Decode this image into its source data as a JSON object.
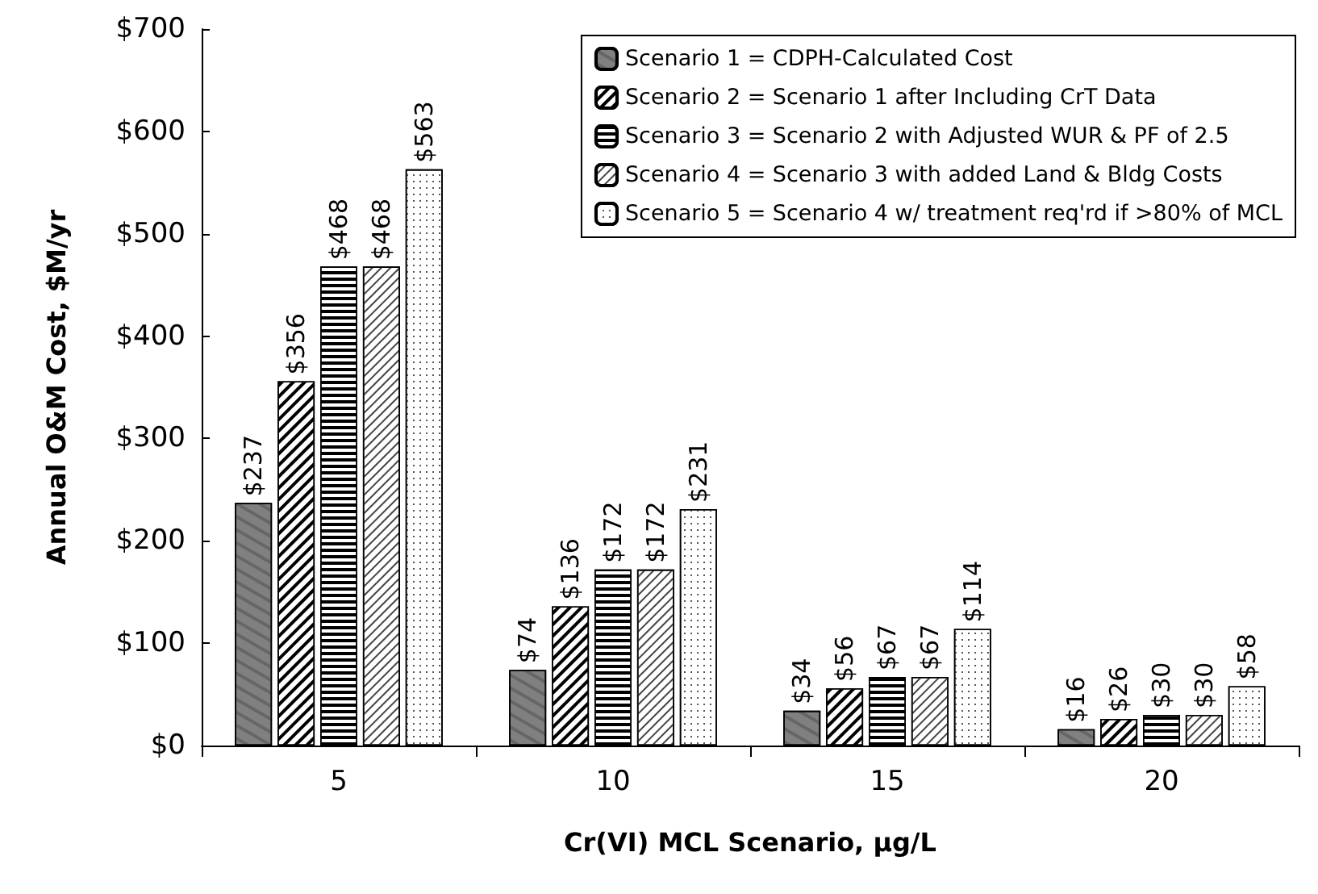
{
  "chart_data": {
    "type": "bar",
    "xlabel": "Cr(VI) MCL Scenario, µg/L",
    "ylabel": "Annual O&M Cost, $M/yr",
    "categories": [
      "5",
      "10",
      "15",
      "20"
    ],
    "series": [
      {
        "name": "Scenario 1 = CDPH-Calculated Cost",
        "color": "#808080",
        "values": [
          237,
          74,
          34,
          16
        ],
        "value_labels": [
          "$237",
          "$74",
          "$34",
          "$16"
        ]
      },
      {
        "name": "Scenario 2 = Scenario 1 after Including CrT Data",
        "color": "#ffffff",
        "values": [
          356,
          136,
          56,
          26
        ],
        "value_labels": [
          "$356",
          "$136",
          "$56",
          "$26"
        ]
      },
      {
        "name": "Scenario 3 = Scenario 2 with Adjusted WUR & PF of 2.5",
        "color": "#ffffff",
        "values": [
          468,
          172,
          67,
          30
        ],
        "value_labels": [
          "$468",
          "$172",
          "$67",
          "$30"
        ]
      },
      {
        "name": "Scenario 4 = Scenario 3 with added Land & Bldg Costs",
        "color": "#ffffff",
        "values": [
          468,
          172,
          67,
          30
        ],
        "value_labels": [
          "$468",
          "$172",
          "$67",
          "$30"
        ]
      },
      {
        "name": "Scenario 5 = Scenario 4 w/ treatment req'rd if >80% of MCL",
        "color": "#ffffff",
        "values": [
          563,
          231,
          114,
          58
        ],
        "value_labels": [
          "$563",
          "$231",
          "$114",
          "$58"
        ]
      }
    ],
    "ylim": [
      0,
      700
    ],
    "yticks": [
      {
        "value": 0,
        "label": "$0"
      },
      {
        "value": 100,
        "label": "$100"
      },
      {
        "value": 200,
        "label": "$200"
      },
      {
        "value": 300,
        "label": "$300"
      },
      {
        "value": 400,
        "label": "$400"
      },
      {
        "value": 500,
        "label": "$500"
      },
      {
        "value": 600,
        "label": "$600"
      },
      {
        "value": 700,
        "label": "$700"
      }
    ],
    "grid": false,
    "legend": "top right"
  }
}
